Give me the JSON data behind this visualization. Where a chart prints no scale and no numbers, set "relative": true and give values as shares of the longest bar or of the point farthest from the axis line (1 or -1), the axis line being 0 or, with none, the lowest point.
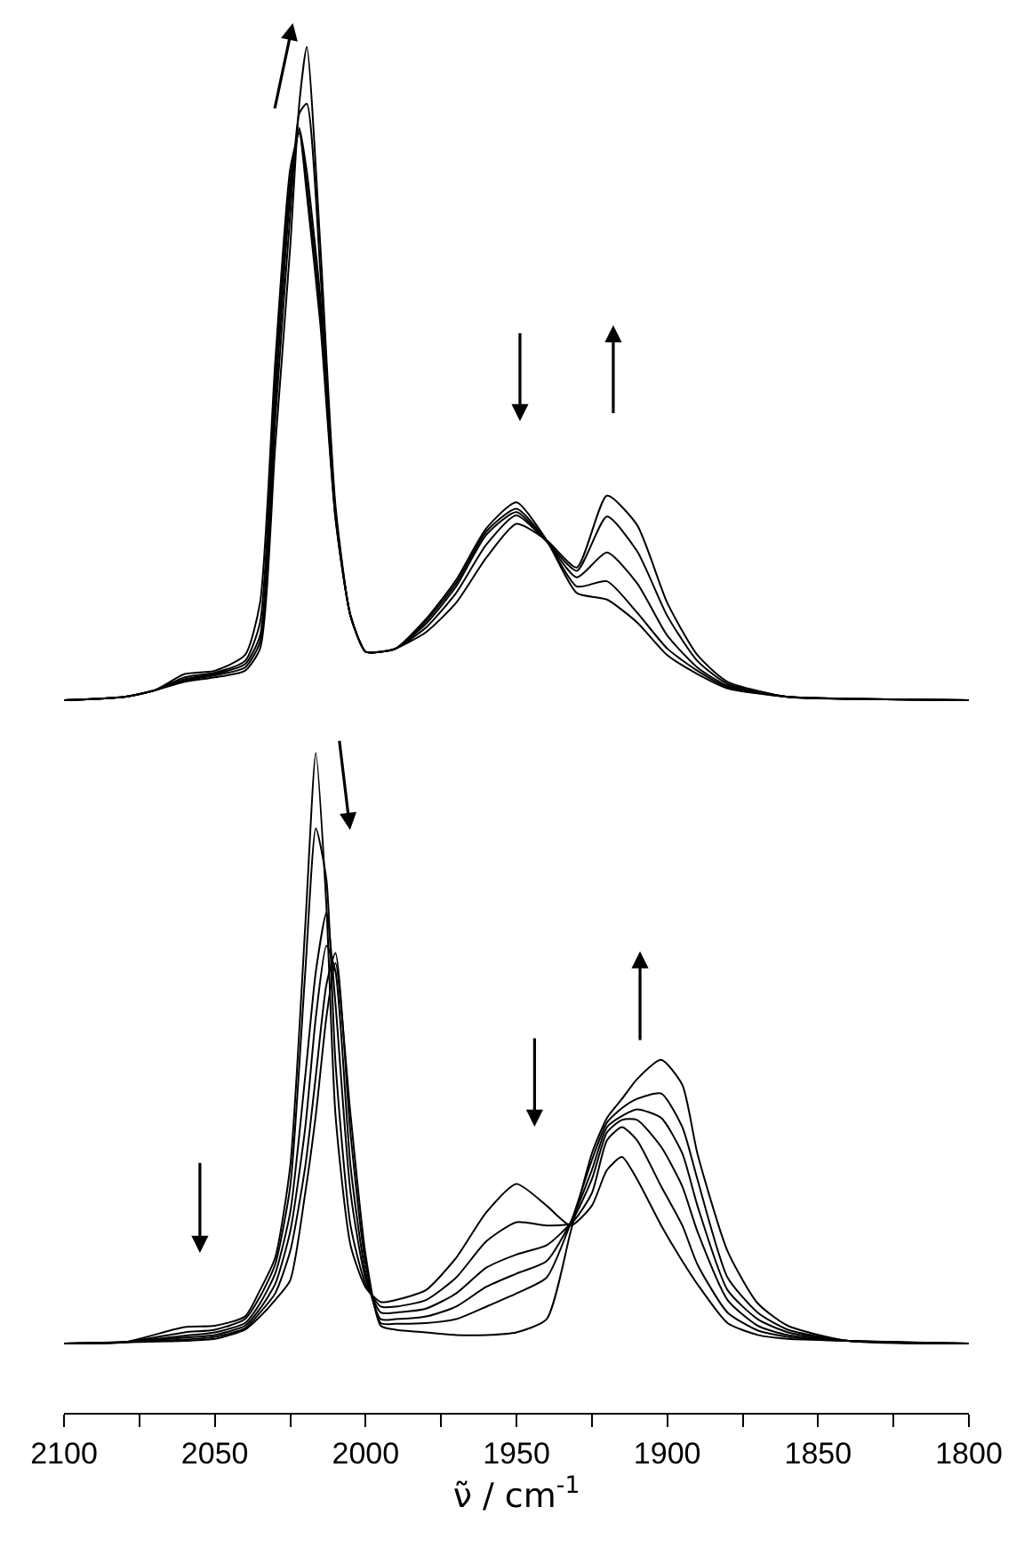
{
  "chart_data": [
    {
      "type": "line",
      "relative": true,
      "tick_labels": false,
      "xlim": [
        2100,
        1800
      ],
      "line_style": "solid",
      "x": [
        2100,
        2080,
        2070,
        2060,
        2050,
        2040,
        2035,
        2030,
        2025,
        2022,
        2019.5,
        2015,
        2010,
        2005,
        2000,
        1995,
        1990,
        1980,
        1970,
        1960,
        1950,
        1940,
        1930,
        1920,
        1910,
        1900,
        1890,
        1880,
        1860,
        1840,
        1800
      ],
      "series": [
        {
          "color": "#000000",
          "values": [
            0,
            0.005,
            0.015,
            0.04,
            0.045,
            0.069,
            0.149,
            0.516,
            0.813,
            0.868,
            0.774,
            0.575,
            0.278,
            0.129,
            0.074,
            0.074,
            0.079,
            0.124,
            0.184,
            0.263,
            0.303,
            0.245,
            0.164,
            0.154,
            0.119,
            0.069,
            0.04,
            0.018,
            0.005,
            0.002,
            0
          ]
        },
        {
          "color": "#000000",
          "values": [
            0,
            0.005,
            0.015,
            0.035,
            0.042,
            0.06,
            0.119,
            0.486,
            0.794,
            0.873,
            0.789,
            0.595,
            0.28,
            0.129,
            0.074,
            0.074,
            0.079,
            0.121,
            0.179,
            0.258,
            0.293,
            0.244,
            0.174,
            0.182,
            0.134,
            0.079,
            0.045,
            0.02,
            0.005,
            0.002,
            0
          ]
        },
        {
          "color": "#000000",
          "values": [
            0,
            0.005,
            0.015,
            0.032,
            0.04,
            0.055,
            0.099,
            0.456,
            0.774,
            0.876,
            0.809,
            0.615,
            0.283,
            0.129,
            0.074,
            0.074,
            0.079,
            0.117,
            0.174,
            0.253,
            0.288,
            0.243,
            0.188,
            0.226,
            0.179,
            0.099,
            0.05,
            0.022,
            0.005,
            0.002,
            0
          ]
        },
        {
          "color": "#000000",
          "values": [
            0,
            0.005,
            0.015,
            0.03,
            0.038,
            0.05,
            0.089,
            0.427,
            0.744,
            0.898,
            0.913,
            0.655,
            0.29,
            0.129,
            0.074,
            0.074,
            0.079,
            0.111,
            0.164,
            0.238,
            0.283,
            0.243,
            0.198,
            0.281,
            0.228,
            0.129,
            0.06,
            0.025,
            0.005,
            0.002,
            0
          ]
        },
        {
          "color": "#000000",
          "values": [
            0,
            0.005,
            0.015,
            0.028,
            0.035,
            0.045,
            0.079,
            0.387,
            0.694,
            0.913,
            1,
            0.694,
            0.298,
            0.129,
            0.074,
            0.074,
            0.079,
            0.104,
            0.149,
            0.218,
            0.27,
            0.245,
            0.203,
            0.313,
            0.268,
            0.149,
            0.069,
            0.028,
            0.005,
            0.002,
            0
          ]
        }
      ]
    },
    {
      "type": "line",
      "relative": true,
      "tick_labels": "x",
      "xlim": [
        2100,
        1800
      ],
      "line_style": "solid",
      "xlabel": "ν̃ / cm$^{-1}$",
      "xticks": [
        2100,
        {
          "value": 2075,
          "label": null
        },
        2050,
        {
          "value": 2025,
          "label": null
        },
        2000,
        {
          "value": 1975,
          "label": null
        },
        1950,
        {
          "value": 1925,
          "label": null
        },
        1900,
        {
          "value": 1875,
          "label": null
        },
        1850,
        {
          "value": 1825,
          "label": null
        },
        1800
      ],
      "x": [
        2100,
        2080,
        2060,
        2050,
        2040,
        2035,
        2030,
        2025,
        2020,
        2016.5,
        2013,
        2010,
        2005,
        2000,
        1995,
        1990,
        1980,
        1970,
        1960,
        1950,
        1940,
        1932,
        1925,
        1920,
        1915,
        1910,
        1902,
        1895,
        1890,
        1880,
        1870,
        1860,
        1840,
        1800
      ],
      "series": [
        {
          "color": "#000000",
          "values": [
            0.105,
            0.107,
            0.13,
            0.132,
            0.146,
            0.186,
            0.235,
            0.374,
            0.739,
            1,
            0.768,
            0.452,
            0.254,
            0.19,
            0.168,
            0.171,
            0.186,
            0.235,
            0.304,
            0.347,
            0.314,
            0.284,
            0.314,
            0.368,
            0.388,
            0.354,
            0.284,
            0.23,
            0.195,
            0.136,
            0.118,
            0.112,
            0.109,
            0.105
          ]
        },
        {
          "color": "#000000",
          "values": [
            0.105,
            0.107,
            0.122,
            0.126,
            0.142,
            0.176,
            0.225,
            0.343,
            0.669,
            0.886,
            0.808,
            0.531,
            0.284,
            0.195,
            0.161,
            0.161,
            0.171,
            0.205,
            0.26,
            0.289,
            0.284,
            0.287,
            0.333,
            0.413,
            0.433,
            0.413,
            0.343,
            0.284,
            0.225,
            0.152,
            0.125,
            0.115,
            0.109,
            0.105
          ]
        },
        {
          "color": "#000000",
          "values": [
            0.105,
            0.107,
            0.117,
            0.122,
            0.136,
            0.166,
            0.211,
            0.304,
            0.511,
            0.669,
            0.758,
            0.62,
            0.334,
            0.203,
            0.152,
            0.152,
            0.158,
            0.181,
            0.22,
            0.24,
            0.254,
            0.288,
            0.354,
            0.425,
            0.444,
            0.444,
            0.403,
            0.343,
            0.275,
            0.171,
            0.132,
            0.118,
            0.109,
            0.105
          ]
        },
        {
          "color": "#000000",
          "values": [
            0.105,
            0.107,
            0.114,
            0.118,
            0.132,
            0.158,
            0.195,
            0.275,
            0.433,
            0.6,
            0.708,
            0.669,
            0.374,
            0.212,
            0.142,
            0.142,
            0.146,
            0.161,
            0.191,
            0.211,
            0.23,
            0.289,
            0.368,
            0.433,
            0.45,
            0.46,
            0.447,
            0.393,
            0.314,
            0.186,
            0.142,
            0.122,
            0.109,
            0.105
          ]
        },
        {
          "color": "#000000",
          "values": [
            0.105,
            0.107,
            0.111,
            0.115,
            0.128,
            0.152,
            0.181,
            0.245,
            0.374,
            0.511,
            0.649,
            0.697,
            0.423,
            0.226,
            0.136,
            0.135,
            0.136,
            0.142,
            0.161,
            0.181,
            0.205,
            0.288,
            0.383,
            0.44,
            0.462,
            0.476,
            0.484,
            0.433,
            0.354,
            0.205,
            0.152,
            0.126,
            0.109,
            0.105
          ]
        },
        {
          "color": "#000000",
          "values": [
            0.105,
            0.107,
            0.109,
            0.112,
            0.126,
            0.146,
            0.171,
            0.201,
            0.334,
            0.452,
            0.6,
            0.682,
            0.452,
            0.239,
            0.132,
            0.126,
            0.122,
            0.118,
            0.118,
            0.122,
            0.142,
            0.275,
            0.393,
            0.447,
            0.476,
            0.506,
            0.535,
            0.497,
            0.393,
            0.245,
            0.166,
            0.132,
            0.109,
            0.105
          ]
        }
      ]
    }
  ]
}
